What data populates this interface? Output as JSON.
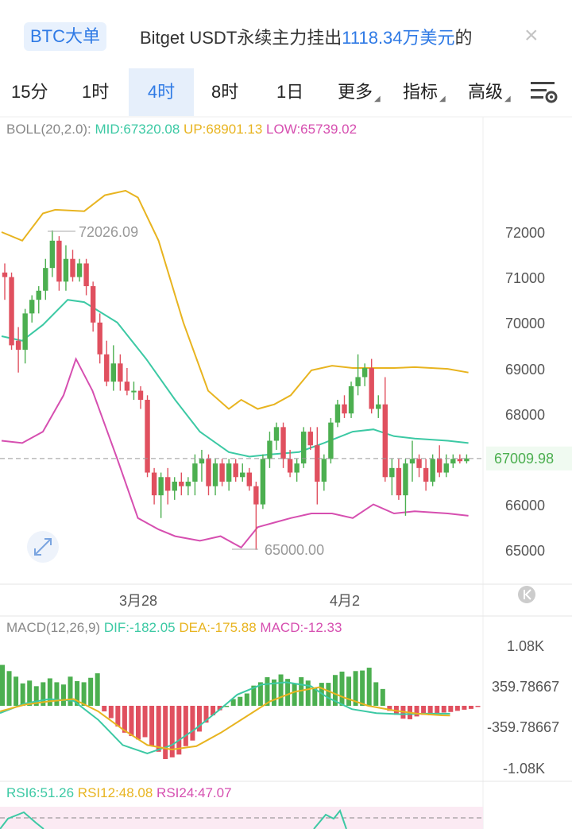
{
  "banner": {
    "badge": "BTC大单",
    "text_prefix": "Bitget USDT永续主力挂出",
    "amount": "1118.34万美元",
    "text_suffix": "的",
    "close": "×"
  },
  "tabs": [
    {
      "label": "15分",
      "active": false
    },
    {
      "label": "1时",
      "active": false
    },
    {
      "label": "4时",
      "active": true
    },
    {
      "label": "8时",
      "active": false
    },
    {
      "label": "1日",
      "active": false
    },
    {
      "label": "更多",
      "active": false
    },
    {
      "label": "指标",
      "active": false
    },
    {
      "label": "高级",
      "active": false
    }
  ],
  "boll": {
    "name": "BOLL(20,2.0):",
    "mid": "MID:67320.08",
    "up": "UP:68901.13",
    "low": "LOW:65739.02"
  },
  "macd": {
    "name": "MACD(12,26,9)",
    "dif": "DIF:-182.05",
    "dea": "DEA:-175.88",
    "macd": "MACD:-12.33"
  },
  "rsi": {
    "r6": "RSI6:51.26",
    "r12": "RSI12:48.08",
    "r24": "RSI24:47.07"
  },
  "price_axis": [
    "72000",
    "71000",
    "70000",
    "69000",
    "68000",
    "66000",
    "65000"
  ],
  "current_price": "67009.98",
  "high_label": "72026.09",
  "low_label": "65000.00",
  "date_labels": [
    "3月28",
    "4月2"
  ],
  "macd_axis": [
    "1.08K",
    "359.78667",
    "-359.78667",
    "-1.08K"
  ],
  "colors": {
    "up": "#4caf50",
    "down": "#e0505f",
    "mid": "#3cc9a4",
    "upper": "#e8b420",
    "lower": "#d64fb0",
    "accent": "#2f7ae5"
  },
  "icons": {
    "expand": "expand-icon",
    "settings": "chart-settings-icon",
    "scroll": "scroll-to-latest-icon"
  },
  "chart_data": {
    "type": "candlestick",
    "price_range": [
      64800,
      72800
    ],
    "current_price": 67009.98,
    "candles": [
      {
        "o": 71100,
        "h": 71300,
        "l": 70500,
        "c": 71000
      },
      {
        "o": 71000,
        "h": 71100,
        "l": 69400,
        "c": 69500
      },
      {
        "o": 69600,
        "h": 69900,
        "l": 68900,
        "c": 69400
      },
      {
        "o": 69400,
        "h": 70300,
        "l": 69100,
        "c": 70200
      },
      {
        "o": 70200,
        "h": 70600,
        "l": 70000,
        "c": 70500
      },
      {
        "o": 70500,
        "h": 70800,
        "l": 70200,
        "c": 70700
      },
      {
        "o": 70700,
        "h": 71400,
        "l": 70500,
        "c": 71200
      },
      {
        "o": 71200,
        "h": 72026,
        "l": 71000,
        "c": 71800
      },
      {
        "o": 71800,
        "h": 71900,
        "l": 70700,
        "c": 70900
      },
      {
        "o": 70900,
        "h": 71700,
        "l": 70700,
        "c": 71400
      },
      {
        "o": 71400,
        "h": 71600,
        "l": 70900,
        "c": 71000
      },
      {
        "o": 71000,
        "h": 71400,
        "l": 70900,
        "c": 71300
      },
      {
        "o": 71300,
        "h": 71400,
        "l": 70600,
        "c": 70800
      },
      {
        "o": 70800,
        "h": 70900,
        "l": 69800,
        "c": 70000
      },
      {
        "o": 70000,
        "h": 70200,
        "l": 69100,
        "c": 69300
      },
      {
        "o": 69300,
        "h": 69600,
        "l": 68600,
        "c": 68700
      },
      {
        "o": 68700,
        "h": 69500,
        "l": 68500,
        "c": 69100
      },
      {
        "o": 69100,
        "h": 69300,
        "l": 68500,
        "c": 68700
      },
      {
        "o": 68700,
        "h": 69000,
        "l": 68400,
        "c": 68500
      },
      {
        "o": 68500,
        "h": 68700,
        "l": 68300,
        "c": 68500
      },
      {
        "o": 68500,
        "h": 68600,
        "l": 68100,
        "c": 68300
      },
      {
        "o": 68300,
        "h": 68400,
        "l": 66600,
        "c": 66700
      },
      {
        "o": 66700,
        "h": 66800,
        "l": 66000,
        "c": 66200
      },
      {
        "o": 66200,
        "h": 66700,
        "l": 65700,
        "c": 66600
      },
      {
        "o": 66600,
        "h": 66800,
        "l": 66000,
        "c": 66300
      },
      {
        "o": 66300,
        "h": 66600,
        "l": 66100,
        "c": 66500
      },
      {
        "o": 66500,
        "h": 66700,
        "l": 66200,
        "c": 66400
      },
      {
        "o": 66400,
        "h": 66600,
        "l": 66200,
        "c": 66500
      },
      {
        "o": 66500,
        "h": 67100,
        "l": 66200,
        "c": 66900
      },
      {
        "o": 66900,
        "h": 67200,
        "l": 66500,
        "c": 67000
      },
      {
        "o": 67000,
        "h": 67100,
        "l": 66200,
        "c": 66400
      },
      {
        "o": 66400,
        "h": 67000,
        "l": 66200,
        "c": 66900
      },
      {
        "o": 66900,
        "h": 67000,
        "l": 66400,
        "c": 66500
      },
      {
        "o": 66500,
        "h": 67000,
        "l": 66300,
        "c": 66900
      },
      {
        "o": 66900,
        "h": 67000,
        "l": 66500,
        "c": 66600
      },
      {
        "o": 66600,
        "h": 66900,
        "l": 66500,
        "c": 66700
      },
      {
        "o": 66700,
        "h": 66800,
        "l": 66300,
        "c": 66400
      },
      {
        "o": 66400,
        "h": 66500,
        "l": 65000,
        "c": 66000
      },
      {
        "o": 66000,
        "h": 67100,
        "l": 65900,
        "c": 67000
      },
      {
        "o": 67000,
        "h": 67600,
        "l": 66800,
        "c": 67400
      },
      {
        "o": 67400,
        "h": 67800,
        "l": 67200,
        "c": 67700
      },
      {
        "o": 67700,
        "h": 67800,
        "l": 66800,
        "c": 67000
      },
      {
        "o": 67000,
        "h": 67200,
        "l": 66600,
        "c": 66700
      },
      {
        "o": 66700,
        "h": 67000,
        "l": 66500,
        "c": 66900
      },
      {
        "o": 66900,
        "h": 67700,
        "l": 66800,
        "c": 67600
      },
      {
        "o": 67600,
        "h": 67700,
        "l": 67200,
        "c": 67300
      },
      {
        "o": 67300,
        "h": 67700,
        "l": 66000,
        "c": 66500
      },
      {
        "o": 66500,
        "h": 67100,
        "l": 66300,
        "c": 67000
      },
      {
        "o": 67000,
        "h": 67900,
        "l": 66900,
        "c": 67800
      },
      {
        "o": 67800,
        "h": 68300,
        "l": 67700,
        "c": 68200
      },
      {
        "o": 68200,
        "h": 68400,
        "l": 67900,
        "c": 68000
      },
      {
        "o": 68000,
        "h": 68700,
        "l": 67900,
        "c": 68600
      },
      {
        "o": 68600,
        "h": 69300,
        "l": 68400,
        "c": 68800
      },
      {
        "o": 68800,
        "h": 69100,
        "l": 68600,
        "c": 69000
      },
      {
        "o": 69000,
        "h": 69200,
        "l": 68000,
        "c": 68100
      },
      {
        "o": 68100,
        "h": 68400,
        "l": 67900,
        "c": 68200
      },
      {
        "o": 68200,
        "h": 68800,
        "l": 66500,
        "c": 66600
      },
      {
        "o": 66600,
        "h": 67000,
        "l": 66200,
        "c": 66800
      },
      {
        "o": 66800,
        "h": 67000,
        "l": 66100,
        "c": 66200
      },
      {
        "o": 66200,
        "h": 67000,
        "l": 65750,
        "c": 66900
      },
      {
        "o": 66900,
        "h": 67400,
        "l": 66500,
        "c": 67000
      },
      {
        "o": 67000,
        "h": 67100,
        "l": 66600,
        "c": 66800
      },
      {
        "o": 66800,
        "h": 67000,
        "l": 66300,
        "c": 66500
      },
      {
        "o": 66500,
        "h": 67100,
        "l": 66400,
        "c": 67000
      },
      {
        "o": 67000,
        "h": 67300,
        "l": 66600,
        "c": 66700
      },
      {
        "o": 66700,
        "h": 67100,
        "l": 66600,
        "c": 66900
      },
      {
        "o": 66900,
        "h": 67100,
        "l": 66800,
        "c": 67000
      },
      {
        "o": 67000,
        "h": 67100,
        "l": 66900,
        "c": 66950
      },
      {
        "o": 66950,
        "h": 67100,
        "l": 66900,
        "c": 67010
      }
    ],
    "boll_upper": [
      [
        0,
        71990
      ],
      [
        5,
        71800
      ],
      [
        10,
        72400
      ],
      [
        13,
        72480
      ],
      [
        20,
        72450
      ],
      [
        25,
        72800
      ],
      [
        30,
        72900
      ],
      [
        33,
        72750
      ],
      [
        38,
        71800
      ],
      [
        44,
        70000
      ],
      [
        50,
        68500
      ],
      [
        55,
        68100
      ],
      [
        58,
        68300
      ],
      [
        62,
        68100
      ],
      [
        66,
        68200
      ],
      [
        70,
        68400
      ],
      [
        75,
        68950
      ],
      [
        80,
        69050
      ],
      [
        85,
        69000
      ],
      [
        95,
        69000
      ],
      [
        100,
        69020
      ],
      [
        108,
        68980
      ],
      [
        113,
        68900
      ]
    ],
    "boll_mid": [
      [
        0,
        69700
      ],
      [
        5,
        69600
      ],
      [
        10,
        69950
      ],
      [
        16,
        70500
      ],
      [
        20,
        70450
      ],
      [
        28,
        70000
      ],
      [
        35,
        69200
      ],
      [
        42,
        68300
      ],
      [
        48,
        67600
      ],
      [
        55,
        67150
      ],
      [
        60,
        67050
      ],
      [
        65,
        67100
      ],
      [
        72,
        67150
      ],
      [
        78,
        67350
      ],
      [
        85,
        67600
      ],
      [
        90,
        67650
      ],
      [
        95,
        67500
      ],
      [
        100,
        67450
      ],
      [
        108,
        67400
      ],
      [
        113,
        67350
      ]
    ],
    "boll_lower": [
      [
        0,
        67400
      ],
      [
        5,
        67350
      ],
      [
        10,
        67600
      ],
      [
        15,
        68400
      ],
      [
        18,
        69200
      ],
      [
        22,
        68500
      ],
      [
        28,
        67000
      ],
      [
        33,
        65700
      ],
      [
        38,
        65450
      ],
      [
        42,
        65300
      ],
      [
        48,
        65200
      ],
      [
        53,
        65300
      ],
      [
        58,
        65050
      ],
      [
        62,
        65500
      ],
      [
        66,
        65600
      ],
      [
        70,
        65700
      ],
      [
        75,
        65800
      ],
      [
        80,
        65800
      ],
      [
        85,
        65700
      ],
      [
        90,
        66000
      ],
      [
        95,
        65800
      ],
      [
        100,
        65850
      ],
      [
        108,
        65800
      ],
      [
        113,
        65750
      ]
    ],
    "macd_hist": [
      730,
      620,
      520,
      400,
      450,
      350,
      420,
      490,
      420,
      380,
      520,
      440,
      420,
      500,
      580,
      -100,
      -220,
      -370,
      -480,
      -540,
      -600,
      -560,
      -720,
      -820,
      -950,
      -920,
      -870,
      -720,
      -620,
      -460,
      -300,
      -170,
      -80,
      0,
      120,
      160,
      220,
      360,
      420,
      510,
      470,
      560,
      480,
      400,
      510,
      450,
      320,
      410,
      410,
      550,
      610,
      520,
      620,
      630,
      680,
      420,
      300,
      -90,
      -160,
      -230,
      -240,
      -190,
      -160,
      -170,
      -150,
      -120,
      -110,
      -90,
      -70,
      -55,
      -20
    ],
    "macd_dif": [
      [
        0,
        -130
      ],
      [
        6,
        40
      ],
      [
        12,
        120
      ],
      [
        18,
        90
      ],
      [
        24,
        -250
      ],
      [
        30,
        -700
      ],
      [
        36,
        -850
      ],
      [
        42,
        -700
      ],
      [
        48,
        -400
      ],
      [
        54,
        -50
      ],
      [
        58,
        200
      ],
      [
        64,
        380
      ],
      [
        70,
        420
      ],
      [
        76,
        350
      ],
      [
        80,
        150
      ],
      [
        86,
        -60
      ],
      [
        92,
        -130
      ],
      [
        98,
        -150
      ],
      [
        104,
        -140
      ],
      [
        110,
        -140
      ]
    ],
    "macd_dea": [
      [
        0,
        -100
      ],
      [
        6,
        20
      ],
      [
        12,
        80
      ],
      [
        18,
        120
      ],
      [
        24,
        -100
      ],
      [
        30,
        -420
      ],
      [
        36,
        -700
      ],
      [
        42,
        -780
      ],
      [
        48,
        -720
      ],
      [
        54,
        -480
      ],
      [
        60,
        -200
      ],
      [
        66,
        80
      ],
      [
        72,
        250
      ],
      [
        78,
        330
      ],
      [
        84,
        150
      ],
      [
        90,
        0
      ],
      [
        96,
        -80
      ],
      [
        102,
        -140
      ],
      [
        108,
        -170
      ],
      [
        110,
        -175
      ]
    ],
    "macd_range": [
      -1150,
      1150
    ]
  }
}
